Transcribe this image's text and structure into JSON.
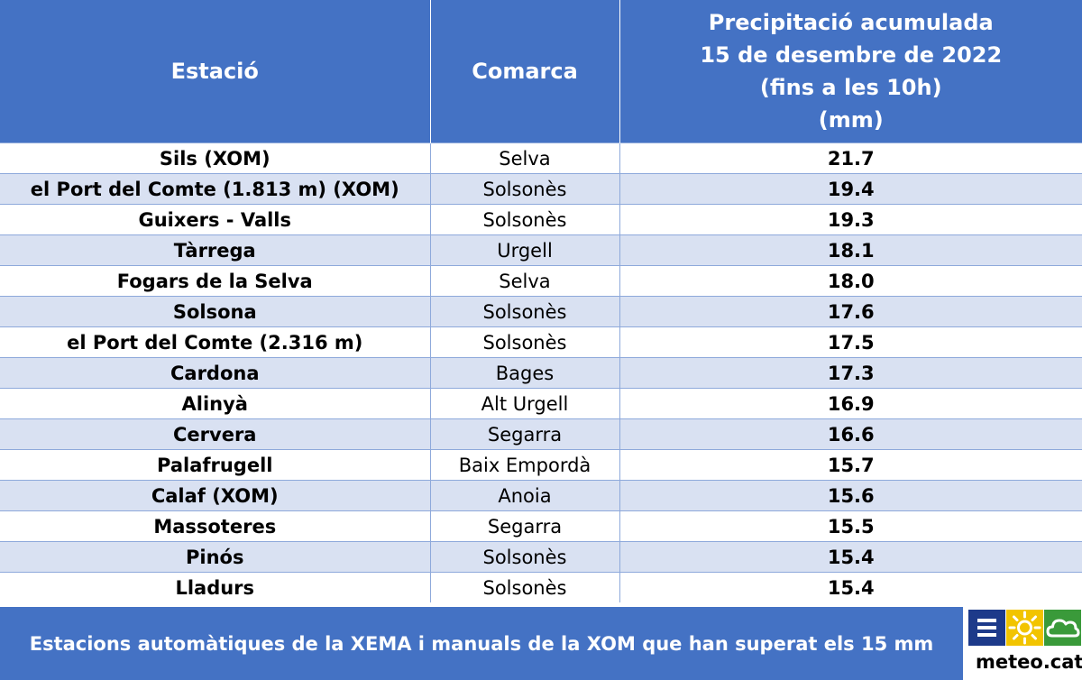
{
  "table": {
    "headers": {
      "station": "Estació",
      "comarca": "Comarca",
      "precip_lines": [
        "Precipitació acumulada",
        "15 de desembre de 2022",
        "(fins a les 10h)",
        "(mm)"
      ]
    },
    "rows": [
      {
        "station": "Sils (XOM)",
        "comarca": "Selva",
        "value": "21.7"
      },
      {
        "station": "el Port del Comte (1.813 m) (XOM)",
        "comarca": "Solsonès",
        "value": "19.4"
      },
      {
        "station": "Guixers - Valls",
        "comarca": "Solsonès",
        "value": "19.3"
      },
      {
        "station": "Tàrrega",
        "comarca": "Urgell",
        "value": "18.1"
      },
      {
        "station": "Fogars de la Selva",
        "comarca": "Selva",
        "value": "18.0"
      },
      {
        "station": "Solsona",
        "comarca": "Solsonès",
        "value": "17.6"
      },
      {
        "station": "el Port del Comte (2.316 m)",
        "comarca": "Solsonès",
        "value": "17.5"
      },
      {
        "station": "Cardona",
        "comarca": "Bages",
        "value": "17.3"
      },
      {
        "station": "Alinyà",
        "comarca": "Alt Urgell",
        "value": "16.9"
      },
      {
        "station": "Cervera",
        "comarca": "Segarra",
        "value": "16.6"
      },
      {
        "station": "Palafrugell",
        "comarca": "Baix Empordà",
        "value": "15.7"
      },
      {
        "station": "Calaf (XOM)",
        "comarca": "Anoia",
        "value": "15.6"
      },
      {
        "station": "Massoteres",
        "comarca": "Segarra",
        "value": "15.5"
      },
      {
        "station": "Pinós",
        "comarca": "Solsonès",
        "value": "15.4"
      },
      {
        "station": "Lladurs",
        "comarca": "Solsonès",
        "value": "15.4"
      }
    ]
  },
  "footer": {
    "text": "Estacions automàtiques de la XEMA i manuals de la XOM que han superat els 15 mm"
  },
  "logo": {
    "text": "meteo.cat",
    "icons": [
      "menu-icon",
      "sun-icon",
      "cloud-icon"
    ],
    "colors": {
      "menu": "#1d3a8a",
      "sun": "#f2c400",
      "cloud": "#3a9a3a"
    }
  },
  "colors": {
    "header_bg": "#4472c4",
    "stripe_bg": "#d9e1f2",
    "text_on_header": "#ffffff"
  }
}
